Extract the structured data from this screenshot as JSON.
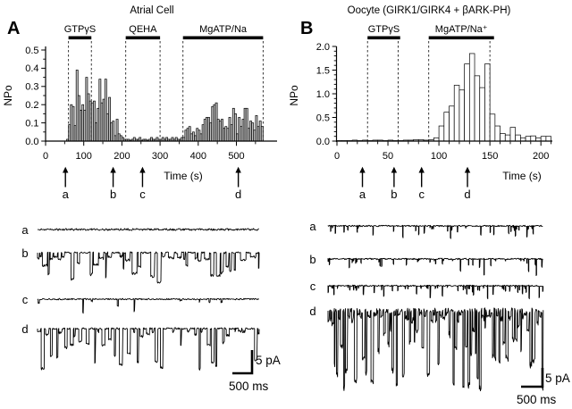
{
  "panels": [
    {
      "letter": "A"
    },
    {
      "letter": "B"
    }
  ],
  "chart_data": [
    {
      "type": "bar",
      "panel": "A",
      "title": "Atrial Cell",
      "xlabel": "Time (s)",
      "ylabel": "NPo",
      "xlim": [
        0,
        575
      ],
      "ylim": [
        0,
        0.5
      ],
      "bin_width": 5,
      "bar_fill": "#c4c4c4",
      "x_ticks": [
        {
          "v": 0,
          "label": "0"
        },
        {
          "v": 100,
          "label": "100"
        },
        {
          "v": 200,
          "label": "200"
        },
        {
          "v": 300,
          "label": "300"
        },
        {
          "v": 400,
          "label": "400"
        },
        {
          "v": 500,
          "label": "500"
        }
      ],
      "y_ticks": [
        {
          "v": 0,
          "label": "0.0"
        },
        {
          "v": 0.1,
          "label": "0.1"
        },
        {
          "v": 0.2,
          "label": "0.2"
        },
        {
          "v": 0.3,
          "label": "0.3"
        },
        {
          "v": 0.4,
          "label": "0.4"
        },
        {
          "v": 0.5,
          "label": "0.5"
        }
      ],
      "x_minor_step": 50,
      "y_minor_step": 0.05,
      "dashed_lines": [
        60,
        120,
        210,
        300,
        360,
        570
      ],
      "treatments": [
        {
          "label": "GTPγS",
          "start": 60,
          "end": 120
        },
        {
          "label": "QEHA",
          "start": 210,
          "end": 300
        },
        {
          "label": "MgATP/Na",
          "start": 360,
          "end": 570
        }
      ],
      "arrows": [
        {
          "label": "a",
          "t": 52
        },
        {
          "label": "b",
          "t": 177
        },
        {
          "label": "c",
          "t": 254
        },
        {
          "label": "d",
          "t": 505
        }
      ],
      "x": [
        55,
        60,
        65,
        70,
        75,
        80,
        85,
        90,
        95,
        100,
        105,
        110,
        115,
        120,
        125,
        130,
        135,
        140,
        145,
        150,
        155,
        160,
        165,
        170,
        175,
        180,
        185,
        190,
        195,
        200,
        205,
        210,
        215,
        220,
        225,
        230,
        235,
        240,
        245,
        250,
        255,
        260,
        265,
        270,
        275,
        280,
        285,
        290,
        295,
        300,
        305,
        310,
        315,
        320,
        325,
        330,
        335,
        340,
        345,
        350,
        355,
        360,
        365,
        370,
        375,
        380,
        385,
        390,
        395,
        400,
        405,
        410,
        415,
        420,
        425,
        430,
        435,
        440,
        445,
        450,
        455,
        460,
        465,
        470,
        475,
        480,
        485,
        490,
        495,
        500,
        505,
        510,
        515,
        520,
        525,
        530,
        535,
        540,
        545,
        550,
        555,
        560,
        565
      ],
      "values": [
        0.01,
        0.09,
        0.2,
        0.19,
        0.085,
        0.39,
        0.25,
        0.17,
        0.2,
        0.17,
        0.35,
        0.26,
        0.22,
        0.21,
        0.22,
        0.1,
        0.18,
        0.34,
        0.21,
        0.23,
        0.34,
        0.15,
        0.24,
        0.1,
        0.11,
        0.03,
        0.12,
        0.04,
        0.03,
        0.02,
        0.01,
        0.01,
        0.01,
        0.005,
        0.01,
        0.02,
        0.01,
        0.01,
        0.02,
        0.005,
        0.01,
        0.01,
        0.005,
        0.01,
        0.02,
        0.01,
        0.01,
        0.02,
        0.01,
        0.01,
        0.02,
        0.01,
        0.02,
        0.01,
        0.01,
        0.02,
        0.01,
        0.02,
        0.01,
        0.01,
        0.02,
        0.02,
        0.06,
        0.07,
        0.08,
        0.04,
        0.05,
        0.03,
        0.07,
        0.06,
        0.04,
        0.09,
        0.12,
        0.13,
        0.13,
        0.1,
        0.19,
        0.2,
        0.21,
        0.12,
        0.11,
        0.12,
        0.07,
        0.08,
        0.07,
        0.13,
        0.09,
        0.18,
        0.15,
        0.04,
        0.13,
        0.08,
        0.12,
        0.18,
        0.18,
        0.07,
        0.11,
        0.1,
        0.06,
        0.14,
        0.08,
        0.11,
        0.08
      ]
    },
    {
      "type": "bar",
      "panel": "B",
      "title": "Oocyte (GIRK1/GIRK4 + βARK-PH)",
      "xlabel": "Time (s)",
      "ylabel": "NPo",
      "xlim": [
        0,
        212
      ],
      "ylim": [
        0,
        2.0
      ],
      "bin_width": 5,
      "bar_fill": "#ffffff",
      "x_ticks": [
        {
          "v": 0,
          "label": "0"
        },
        {
          "v": 50,
          "label": "50"
        },
        {
          "v": 100,
          "label": "100"
        },
        {
          "v": 150,
          "label": "150"
        },
        {
          "v": 200,
          "label": "200"
        }
      ],
      "y_ticks": [
        {
          "v": 0,
          "label": "0.0"
        },
        {
          "v": 0.5,
          "label": "0.5"
        },
        {
          "v": 1,
          "label": "1.0"
        },
        {
          "v": 1.5,
          "label": "1.5"
        },
        {
          "v": 2,
          "label": "2.0"
        }
      ],
      "x_minor_step": 10,
      "y_minor_step": 0.1,
      "dashed_lines": [
        30,
        60,
        90,
        150
      ],
      "treatments": [
        {
          "label": "GTPγS",
          "start": 30,
          "end": 62
        },
        {
          "label": "MgATP/Na⁺",
          "start": 90,
          "end": 154
        }
      ],
      "arrows": [
        {
          "label": "a",
          "t": 25
        },
        {
          "label": "b",
          "t": 56
        },
        {
          "label": "c",
          "t": 83
        },
        {
          "label": "d",
          "t": 128
        }
      ],
      "x": [
        0,
        5,
        10,
        15,
        20,
        25,
        30,
        35,
        40,
        45,
        50,
        55,
        60,
        65,
        70,
        75,
        80,
        85,
        90,
        95,
        100,
        105,
        110,
        115,
        120,
        125,
        130,
        135,
        140,
        145,
        150,
        155,
        160,
        165,
        170,
        175,
        180,
        185,
        190,
        195,
        200,
        205
      ],
      "values": [
        0.01,
        0.01,
        0.01,
        0.02,
        0.01,
        0.02,
        0.01,
        0.02,
        0.02,
        0.01,
        0.02,
        0.01,
        0.01,
        0.02,
        0.02,
        0.03,
        0.03,
        0.02,
        0.03,
        0.07,
        0.32,
        0.61,
        0.74,
        1.18,
        1.08,
        1.63,
        1.85,
        1.38,
        1.13,
        1.63,
        0.57,
        0.32,
        0.16,
        0.13,
        0.29,
        0.13,
        0.07,
        0.1,
        0.11,
        0.07,
        0.1,
        0.1
      ]
    }
  ],
  "traces": {
    "scale_bar": {
      "current": "5 pA",
      "time": "500 ms"
    },
    "left": {
      "panel": "A",
      "items": [
        {
          "label": "a",
          "seed": 11,
          "rate": 0,
          "noise": 1.1,
          "dmin": 0,
          "dmax": 0,
          "skew": 1,
          "wmin": 0,
          "wmax": 0
        },
        {
          "label": "b",
          "seed": 22,
          "rate": 0.28,
          "noise": 1.0,
          "dmin": 4,
          "dmax": 34,
          "skew": 1.8,
          "wmin": 1,
          "wmax": 7
        },
        {
          "label": "c",
          "seed": 33,
          "rate": 0.04,
          "noise": 0.8,
          "dmin": 2,
          "dmax": 15,
          "skew": 2.0,
          "wmin": 0,
          "wmax": 2
        },
        {
          "label": "d",
          "seed": 44,
          "rate": 0.17,
          "noise": 1.0,
          "dmin": 3,
          "dmax": 48,
          "skew": 2.5,
          "wmin": 1,
          "wmax": 4
        }
      ]
    },
    "right": {
      "panel": "B",
      "items": [
        {
          "label": "a",
          "seed": 55,
          "rate": 0.1,
          "noise": 0.8,
          "dmin": 2,
          "dmax": 14,
          "skew": 2.0,
          "wmin": 0,
          "wmax": 1
        },
        {
          "label": "b",
          "seed": 66,
          "rate": 0.1,
          "noise": 0.8,
          "dmin": 2,
          "dmax": 19,
          "skew": 2.2,
          "wmin": 0,
          "wmax": 1
        },
        {
          "label": "c",
          "seed": 77,
          "rate": 0.16,
          "noise": 0.8,
          "dmin": 2,
          "dmax": 14,
          "skew": 2.0,
          "wmin": 0,
          "wmax": 1
        },
        {
          "label": "d",
          "seed": 88,
          "rate": 0.7,
          "noise": 3.2,
          "dmin": 5,
          "dmax": 88,
          "skew": 2.6,
          "wmin": 1,
          "wmax": 3
        }
      ]
    }
  }
}
